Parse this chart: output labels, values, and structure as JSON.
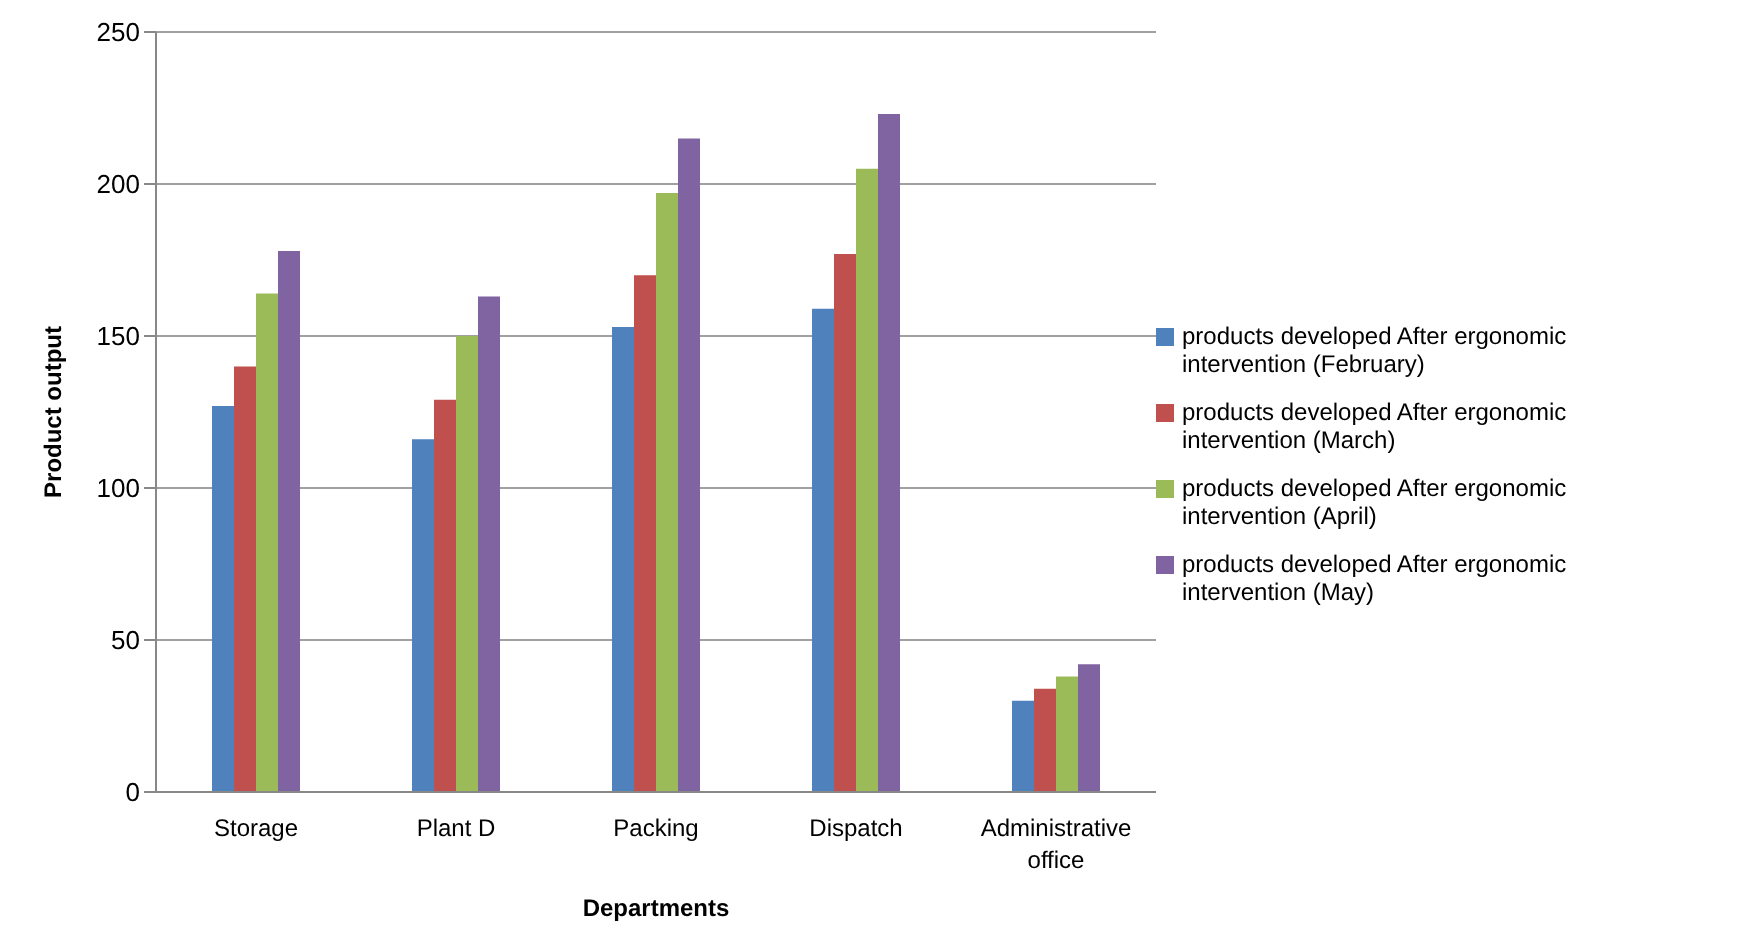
{
  "chart_data": {
    "type": "bar",
    "xlabel": "Departments",
    "ylabel": "Product output",
    "categories": [
      "Storage",
      "Plant D",
      "Packing",
      "Dispatch",
      "Administrative office"
    ],
    "series": [
      {
        "name": "products developed After ergonomic intervention (February)",
        "color": "#4f81bd",
        "values": [
          127,
          116,
          153,
          159,
          30
        ]
      },
      {
        "name": "products developed After ergonomic intervention (March)",
        "color": "#c0504d",
        "values": [
          140,
          129,
          170,
          177,
          34
        ]
      },
      {
        "name": "products developed After ergonomic intervention (April)",
        "color": "#9bbb59",
        "values": [
          164,
          150,
          197,
          205,
          38
        ]
      },
      {
        "name": "products developed After ergonomic intervention (May)",
        "color": "#8064a2",
        "values": [
          178,
          163,
          215,
          223,
          42
        ]
      }
    ],
    "ylim": [
      0,
      250
    ],
    "yticks": [
      0,
      50,
      100,
      150,
      200,
      250
    ],
    "grid": "y",
    "legend": "right"
  }
}
